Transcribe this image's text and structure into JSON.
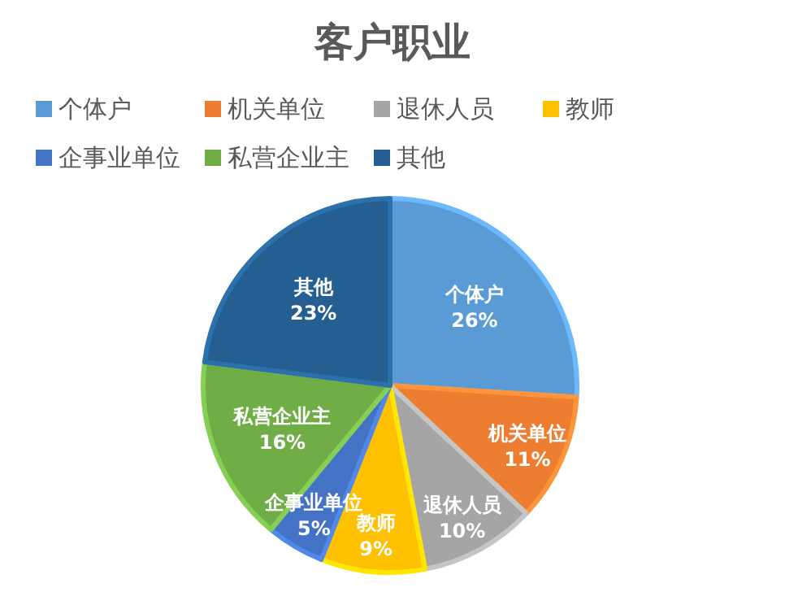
{
  "chart_data": {
    "type": "pie",
    "title": "客户职业",
    "categories": [
      "个体户",
      "机关单位",
      "退休人员",
      "教师",
      "企事业单位",
      "私营企业主",
      "其他"
    ],
    "values": [
      26,
      11,
      10,
      9,
      5,
      16,
      23
    ],
    "colors": [
      "#5b9bd5",
      "#ed7d31",
      "#a5a5a5",
      "#ffc000",
      "#4472c4",
      "#70ad47",
      "#255e91"
    ],
    "value_labels": [
      "26%",
      "11%",
      "10%",
      "9%",
      "5%",
      "16%",
      "23%"
    ],
    "legend": "top"
  }
}
